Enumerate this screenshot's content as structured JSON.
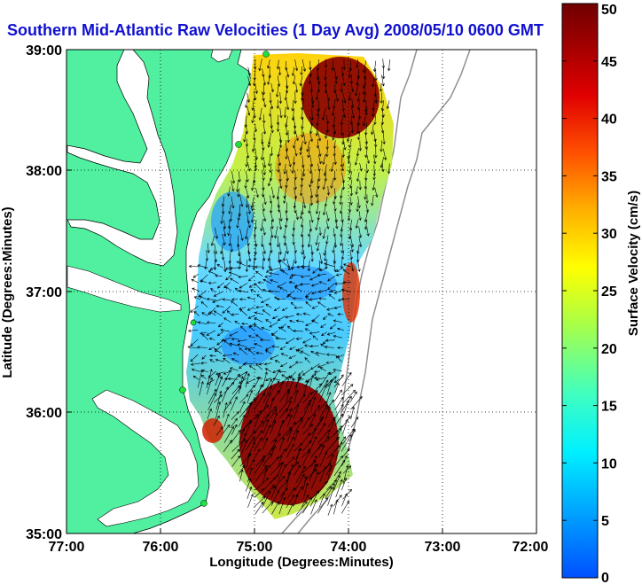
{
  "title": "Southern Mid-Atlantic Raw Velocities (1 Day Avg) 2008/05/10 0600 GMT",
  "axes": {
    "xlabel": "Longitude (Degrees:Minutes)",
    "ylabel": "Latitude (Degrees:Minutes)",
    "x_ticks": [
      "77:00",
      "76:00",
      "75:00",
      "74:00",
      "73:00",
      "72:00"
    ],
    "y_ticks": [
      "39:00",
      "38:00",
      "37:00",
      "36:00",
      "35:00"
    ]
  },
  "colorbar": {
    "label": "Surface Velocity (cm/s)",
    "ticks": [
      "0",
      "5",
      "10",
      "15",
      "20",
      "25",
      "30",
      "35",
      "40",
      "45",
      "50"
    ],
    "range": [
      0,
      50
    ],
    "colors": [
      "#0050ff",
      "#00c8ff",
      "#40ffc0",
      "#c0ff40",
      "#ffd000",
      "#ff6000",
      "#e01000",
      "#a00000",
      "#700000"
    ]
  },
  "map": {
    "land_color": "#50f0a0",
    "ocean_color": "#ffffff",
    "grid": true,
    "lon_range": [
      "77:00",
      "72:00"
    ],
    "lat_range": [
      "35:00",
      "39:00"
    ],
    "hf_radar_sites": 5
  }
}
